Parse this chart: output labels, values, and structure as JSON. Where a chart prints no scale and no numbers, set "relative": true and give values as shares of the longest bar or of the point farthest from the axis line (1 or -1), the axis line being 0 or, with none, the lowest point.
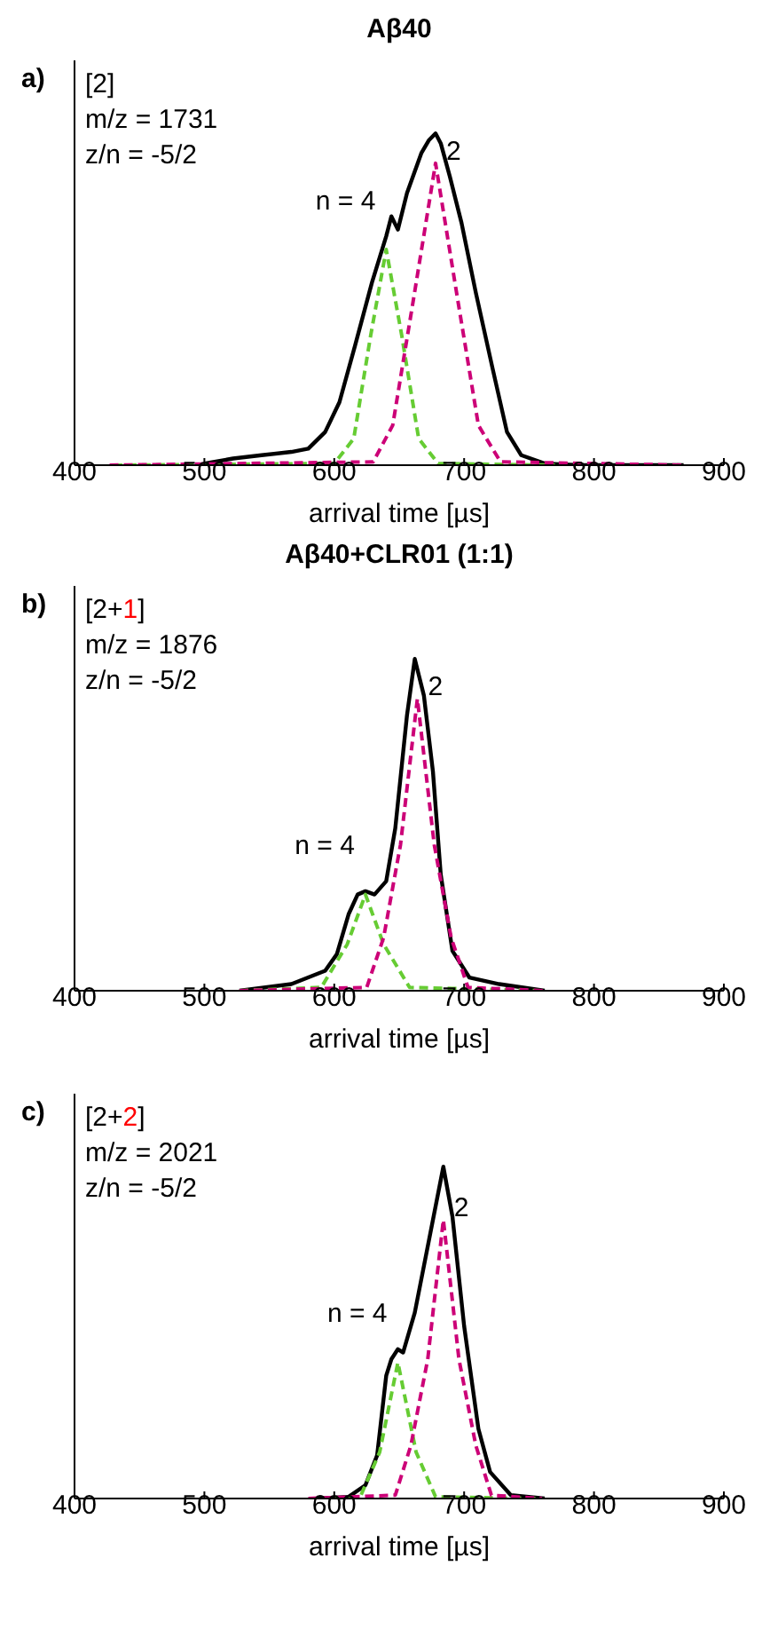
{
  "chart_data": [
    {
      "type": "line",
      "title": "Aβ40",
      "xlabel": "arrival time [µs]",
      "xlim": [
        400,
        900
      ],
      "xticks": [
        400,
        500,
        600,
        700,
        800,
        900
      ],
      "relative": true,
      "tick_labels": "x",
      "annotations": [
        "a)",
        "[2]",
        "m/z = 1731",
        "z/n = -5/2",
        "n = 4",
        "2"
      ],
      "series": [
        {
          "color": "#000000",
          "line_style": "solid",
          "x": [
            500,
            522,
            544,
            567,
            580,
            593,
            604,
            616,
            629,
            640,
            644,
            649,
            656,
            667,
            673,
            678,
            682,
            689,
            698,
            709,
            722,
            733,
            744,
            762,
            789,
            869
          ],
          "values": [
            0.005,
            0.02,
            0.03,
            0.04,
            0.05,
            0.1,
            0.19,
            0.36,
            0.55,
            0.69,
            0.75,
            0.71,
            0.82,
            0.94,
            0.98,
            1,
            0.97,
            0.87,
            0.73,
            0.52,
            0.29,
            0.1,
            0.03,
            0.005,
            0,
            0
          ]
        },
        {
          "color": "#66cc33",
          "line_style": "dashed",
          "x": [
            430,
            600,
            615,
            628,
            640,
            652,
            665,
            680,
            770
          ],
          "values": [
            0,
            0.005,
            0.08,
            0.39,
            0.65,
            0.39,
            0.08,
            0.005,
            0
          ]
        },
        {
          "color": "#cc0077",
          "line_style": "dashed",
          "x": [
            427,
            630,
            645,
            661,
            678,
            695,
            711,
            728,
            869
          ],
          "values": [
            0,
            0.01,
            0.12,
            0.5,
            0.91,
            0.5,
            0.12,
            0.01,
            0
          ]
        }
      ]
    },
    {
      "type": "line",
      "title": "Aβ40+CLR01 (1:1)",
      "xlabel": "arrival time [µs]",
      "xlim": [
        400,
        900
      ],
      "xticks": [
        400,
        500,
        600,
        700,
        800,
        900
      ],
      "relative": true,
      "tick_labels": "x",
      "annotations": [
        "b)",
        "[2+1]",
        "m/z = 1876",
        "z/n = -5/2",
        "n = 4",
        "2"
      ],
      "series": [
        {
          "color": "#000000",
          "line_style": "solid",
          "x": [
            527,
            567,
            580,
            593,
            602,
            611,
            618,
            624,
            631,
            640,
            647,
            656,
            662,
            669,
            676,
            682,
            691,
            704,
            727,
            762
          ],
          "values": [
            0,
            0.02,
            0.04,
            0.06,
            0.11,
            0.23,
            0.29,
            0.3,
            0.29,
            0.33,
            0.49,
            0.83,
            1,
            0.89,
            0.66,
            0.35,
            0.12,
            0.04,
            0.02,
            0
          ]
        },
        {
          "color": "#66cc33",
          "line_style": "dashed",
          "x": [
            527,
            590,
            610,
            624,
            638,
            658,
            762
          ],
          "values": [
            0,
            0.01,
            0.14,
            0.29,
            0.14,
            0.01,
            0
          ]
        },
        {
          "color": "#cc0077",
          "line_style": "dashed",
          "x": [
            527,
            625,
            638,
            651,
            664,
            677,
            690,
            703,
            762
          ],
          "values": [
            0,
            0.01,
            0.16,
            0.44,
            0.88,
            0.44,
            0.16,
            0.01,
            0
          ]
        }
      ]
    },
    {
      "type": "line",
      "xlabel": "arrival time [µs]",
      "xlim": [
        400,
        900
      ],
      "xticks": [
        400,
        500,
        600,
        700,
        800,
        900
      ],
      "relative": true,
      "tick_labels": "x",
      "annotations": [
        "c)",
        "[2+2]",
        "m/z = 2021",
        "z/n = -5/2",
        "n = 4",
        "2"
      ],
      "series": [
        {
          "color": "#000000",
          "line_style": "solid",
          "x": [
            587,
            611,
            624,
            633,
            640,
            644,
            649,
            653,
            662,
            671,
            684,
            691,
            700,
            711,
            720,
            736,
            762
          ],
          "values": [
            0,
            0.005,
            0.04,
            0.13,
            0.37,
            0.42,
            0.45,
            0.44,
            0.56,
            0.74,
            1,
            0.85,
            0.52,
            0.21,
            0.08,
            0.01,
            0
          ]
        },
        {
          "color": "#66cc33",
          "line_style": "dashed",
          "x": [
            600,
            620,
            635,
            649,
            663,
            678,
            760
          ],
          "values": [
            0,
            0.005,
            0.14,
            0.41,
            0.14,
            0.005,
            0
          ]
        },
        {
          "color": "#cc0077",
          "line_style": "dashed",
          "x": [
            580,
            647,
            659,
            672,
            684,
            696,
            709,
            721,
            760
          ],
          "values": [
            0,
            0.01,
            0.16,
            0.42,
            0.84,
            0.42,
            0.16,
            0.01,
            0
          ]
        }
      ]
    }
  ]
}
